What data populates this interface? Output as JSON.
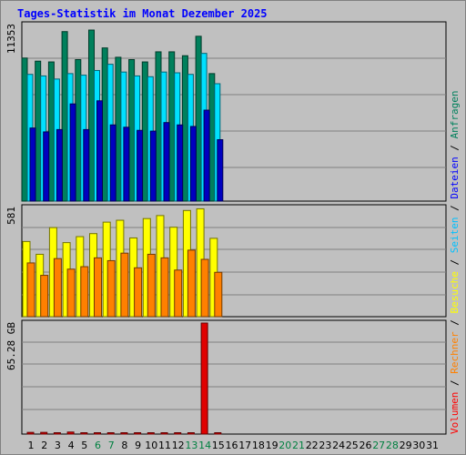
{
  "title": "Tages-Statistik im Monat Dezember 2025",
  "legend": [
    {
      "label": "Anfragen",
      "color": "#00805c"
    },
    {
      "label": "Dateien",
      "color": "#0000ff"
    },
    {
      "label": "Seiten",
      "color": "#00c0ff"
    },
    {
      "label": "Besuche",
      "color": "#ffff00"
    },
    {
      "label": "Rechner",
      "color": "#ff8000"
    },
    {
      "label": "Volumen",
      "color": "#ff0000"
    }
  ],
  "legend_separator": "/",
  "chart_data": {
    "type": "bar",
    "title": "Tages-Statistik im Monat Dezember 2025",
    "categories": [
      "1",
      "2",
      "3",
      "4",
      "5",
      "6",
      "7",
      "8",
      "9",
      "10",
      "11",
      "12",
      "13",
      "14",
      "15",
      "16",
      "17",
      "18",
      "19",
      "20",
      "21",
      "22",
      "23",
      "24",
      "25",
      "26",
      "27",
      "28",
      "29",
      "30",
      "31"
    ],
    "weekend_days": [
      "6",
      "7",
      "13",
      "14",
      "20",
      "21",
      "27",
      "28"
    ],
    "weekend_color": "#008040",
    "weekday_color": "#000000",
    "panels": [
      {
        "max_label": "11353",
        "ylim": [
          0,
          11353
        ],
        "series": [
          {
            "name": "Anfragen",
            "color": "#00805c",
            "values": [
              9200,
              9000,
              8950,
              10900,
              9100,
              11000,
              9850,
              9250,
              9100,
              8950,
              9600,
              9600,
              9350,
              10600,
              8200,
              0,
              0,
              0,
              0,
              0,
              0,
              0,
              0,
              0,
              0,
              0,
              0,
              0,
              0,
              0,
              0
            ]
          },
          {
            "name": "Seiten",
            "color": "#00e0ff",
            "values": [
              8150,
              8050,
              7850,
              8200,
              8100,
              8400,
              8800,
              8300,
              8050,
              8000,
              8300,
              8250,
              8150,
              9500,
              7550,
              0,
              0,
              0,
              0,
              0,
              0,
              0,
              0,
              0,
              0,
              0,
              0,
              0,
              0,
              0,
              0
            ]
          },
          {
            "name": "Dateien",
            "color": "#0000c0",
            "values": [
              4700,
              4450,
              4600,
              6250,
              4600,
              6450,
              4900,
              4750,
              4550,
              4500,
              5050,
              4900,
              4800,
              5850,
              3950,
              0,
              0,
              0,
              0,
              0,
              0,
              0,
              0,
              0,
              0,
              0,
              0,
              0,
              0,
              0,
              0
            ]
          }
        ]
      },
      {
        "max_label": "581",
        "ylim": [
          0,
          581
        ],
        "series": [
          {
            "name": "Besuche",
            "color": "#ffff00",
            "values": [
              400,
              332,
              474,
              394,
              426,
              442,
              503,
              513,
              419,
              522,
              538,
              476,
              565,
              574,
              417,
              0,
              0,
              0,
              0,
              0,
              0,
              0,
              0,
              0,
              0,
              0,
              0,
              0,
              0,
              0,
              0
            ]
          },
          {
            "name": "Rechner",
            "color": "#ff8000",
            "values": [
              286,
              220,
              309,
              253,
              266,
              313,
              298,
              338,
              260,
              332,
              313,
              248,
              354,
              305,
              236,
              0,
              0,
              0,
              0,
              0,
              0,
              0,
              0,
              0,
              0,
              0,
              0,
              0,
              0,
              0,
              0
            ]
          }
        ]
      },
      {
        "max_label": "65.28 GB",
        "ylim": [
          0,
          65.28
        ],
        "series": [
          {
            "name": "Volumen",
            "color": "#e00000",
            "values": [
              1.0,
              1.0,
              0.8,
              1.2,
              0.8,
              0.8,
              0.8,
              0.8,
              0.8,
              0.8,
              0.8,
              0.8,
              0.8,
              65.28,
              0.8,
              0,
              0,
              0,
              0,
              0,
              0,
              0,
              0,
              0,
              0,
              0,
              0,
              0,
              0,
              0,
              0
            ]
          }
        ]
      }
    ]
  }
}
